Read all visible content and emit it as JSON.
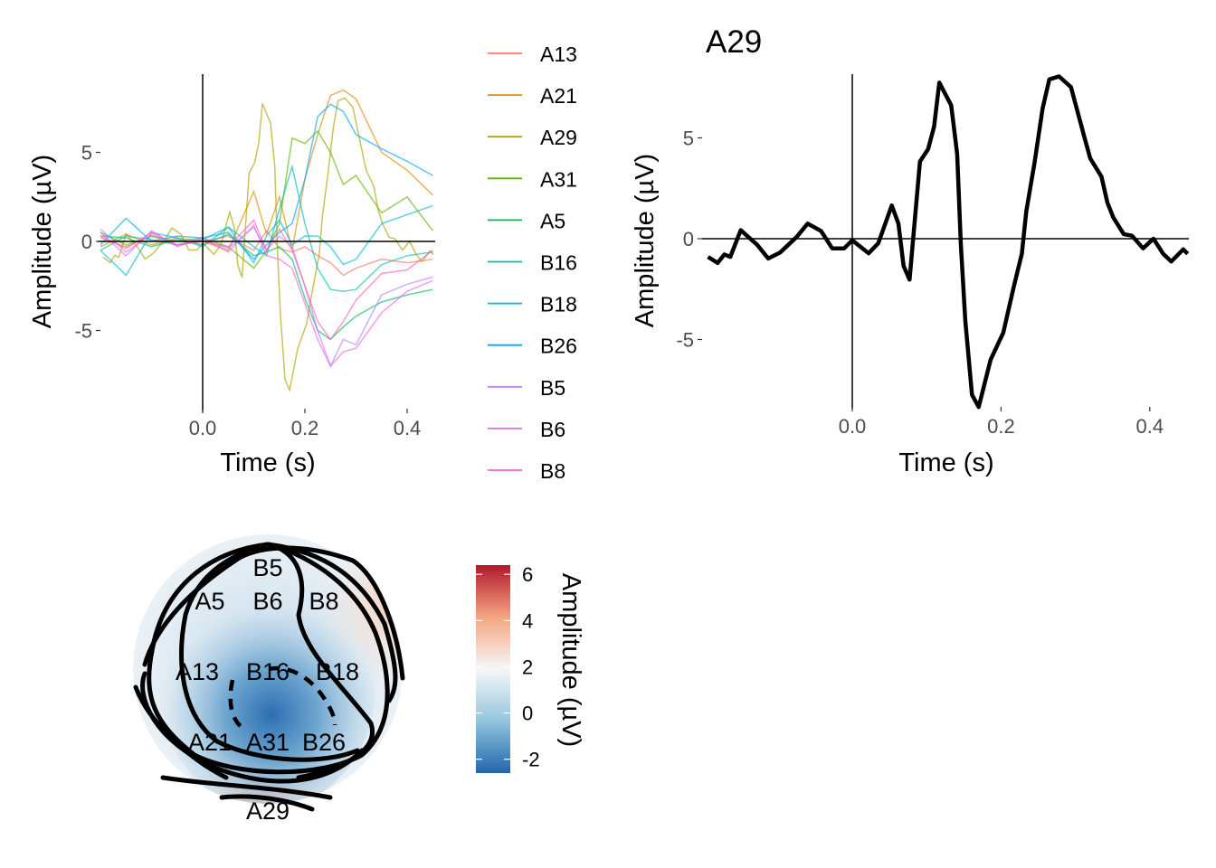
{
  "chart_data": [
    {
      "type": "line",
      "title": "",
      "xlabel": "Time (s)",
      "ylabel": "Amplitude (µV)",
      "xlim": [
        -0.2,
        0.45
      ],
      "ylim": [
        -9.4,
        9.4
      ],
      "xticks": [
        "0.0",
        "0.2",
        "0.4"
      ],
      "xtick_values": [
        0,
        0.2,
        0.4
      ],
      "yticks": [
        "-5",
        "0",
        "5"
      ],
      "ytick_values": [
        -5,
        0,
        5
      ],
      "legend_position": "right",
      "t": [
        -0.2,
        -0.15,
        -0.1,
        -0.05,
        0,
        0.05,
        0.1,
        0.125,
        0.15,
        0.175,
        0.2,
        0.225,
        0.25,
        0.275,
        0.3,
        0.35,
        0.4,
        0.45
      ],
      "series": [
        {
          "name": "A13",
          "color": "#F8766D",
          "values": [
            0.2,
            -0.3,
            0.3,
            -0.2,
            0,
            0.3,
            -0.5,
            0.6,
            -0.4,
            -0.6,
            -0.3,
            -0.8,
            -1.2,
            -1.9,
            -1.5,
            -1.0,
            -1.2,
            -1.0
          ]
        },
        {
          "name": "A21",
          "color": "#DB8E00",
          "values": [
            -0.3,
            0.4,
            -0.2,
            0.2,
            0,
            -0.5,
            2.8,
            0.4,
            2.5,
            -0.5,
            3.5,
            6.0,
            8.2,
            8.5,
            8.0,
            5.0,
            4.0,
            2.6
          ]
        },
        {
          "name": "A29",
          "color": "#AEA200",
          "use": "A29"
        },
        {
          "name": "A31",
          "color": "#64B200",
          "values": [
            0.5,
            -0.2,
            0.3,
            0,
            0.2,
            -0.3,
            -1.5,
            -0.5,
            1.0,
            5.8,
            5.5,
            6.2,
            5.0,
            3.2,
            3.7,
            1.6,
            2.5,
            0.6
          ]
        },
        {
          "name": "A5",
          "color": "#00BD5C",
          "values": [
            0.3,
            0.2,
            -0.3,
            0.1,
            -0.2,
            0.4,
            -0.8,
            -0.6,
            -0.3,
            -1.0,
            -3.2,
            -5.0,
            -5.5,
            -4.8,
            -4.2,
            -3.4,
            -3.0,
            -2.7
          ]
        },
        {
          "name": "B16",
          "color": "#00C1A7",
          "values": [
            -0.5,
            0.3,
            0.1,
            -0.2,
            0.1,
            0.8,
            -0.3,
            -0.8,
            1.8,
            4.2,
            1.0,
            -1.5,
            -2.7,
            -2.8,
            -2.7,
            -1.3,
            -0.8,
            -0.6
          ]
        },
        {
          "name": "B18",
          "color": "#00BADE",
          "values": [
            -0.5,
            -1.9,
            0.5,
            0.2,
            -0.3,
            0.8,
            -1.2,
            0.3,
            1.2,
            -0.2,
            0.3,
            0.3,
            -0.3,
            -1.3,
            -1.0,
            1.0,
            1.5,
            2.0
          ]
        },
        {
          "name": "B26",
          "color": "#00A6FF",
          "values": [
            -0.2,
            1.3,
            0,
            0.3,
            0.2,
            0.5,
            -1.0,
            -0.2,
            0.5,
            1.0,
            3.5,
            7.0,
            7.7,
            7.3,
            6.0,
            5.2,
            4.5,
            3.7
          ]
        },
        {
          "name": "B5",
          "color": "#B385FF",
          "values": [
            0.7,
            -0.6,
            0.4,
            -0.2,
            0.1,
            -0.4,
            0.8,
            -0.5,
            0.3,
            -0.3,
            -2.5,
            -5.0,
            -7.0,
            -5.5,
            -5.8,
            -3.0,
            -2.4,
            -2.0
          ]
        },
        {
          "name": "B6",
          "color": "#EF67EB",
          "values": [
            0.5,
            -0.8,
            0.6,
            -0.3,
            0.2,
            -0.6,
            0.9,
            -0.8,
            -1.0,
            -1.5,
            -3.5,
            -5.5,
            -7.0,
            -6.2,
            -6.0,
            -4.0,
            -2.8,
            -2.2
          ]
        },
        {
          "name": "B8",
          "color": "#FF63B6",
          "values": [
            0.3,
            -0.4,
            0.5,
            -0.2,
            0.0,
            -0.3,
            1.2,
            -0.5,
            0.7,
            -0.5,
            -2.5,
            -4.5,
            -5.5,
            -4.5,
            -3.3,
            -1.8,
            -1.6,
            -0.5
          ]
        }
      ]
    },
    {
      "type": "line",
      "title": "A29",
      "xlabel": "Time (s)",
      "ylabel": "Amplitude (µV)",
      "xlim": [
        -0.2,
        0.45
      ],
      "ylim": [
        -8.4,
        8.1
      ],
      "xticks": [
        "0.0",
        "0.2",
        "0.4"
      ],
      "xtick_values": [
        0,
        0.2,
        0.4
      ],
      "yticks": [
        "-5",
        "0",
        "5"
      ],
      "ytick_values": [
        -5,
        0,
        5
      ],
      "color": "#000000",
      "t": [
        -0.194,
        -0.181,
        -0.172,
        -0.164,
        -0.15,
        -0.128,
        -0.113,
        -0.097,
        -0.075,
        -0.06,
        -0.042,
        -0.027,
        -0.011,
        0,
        0.022,
        0.035,
        0.053,
        0.062,
        0.069,
        0.077,
        0.091,
        0.102,
        0.11,
        0.117,
        0.133,
        0.141,
        0.146,
        0.152,
        0.161,
        0.17,
        0.186,
        0.203,
        0.217,
        0.228,
        0.234,
        0.245,
        0.256,
        0.265,
        0.278,
        0.294,
        0.312,
        0.32,
        0.335,
        0.343,
        0.351,
        0.365,
        0.376,
        0.391,
        0.405,
        0.418,
        0.429,
        0.445,
        0.451
      ],
      "values": [
        -0.9,
        -1.2,
        -0.78,
        -0.9,
        0.42,
        -0.3,
        -0.98,
        -0.68,
        0.08,
        0.75,
        0.38,
        -0.48,
        -0.48,
        -0.08,
        -0.72,
        -0.22,
        1.65,
        0.75,
        -1.35,
        -2.03,
        3.83,
        4.44,
        5.56,
        7.74,
        6.62,
        4.21,
        -0.3,
        -4.06,
        -7.74,
        -8.35,
        -6.0,
        -4.66,
        -2.4,
        -0.75,
        1.35,
        3.76,
        6.47,
        7.9,
        8.05,
        7.52,
        5.04,
        3.98,
        3.08,
        1.8,
        1.05,
        0.23,
        0.15,
        -0.48,
        0,
        -0.75,
        -1.13,
        -0.53,
        -0.75
      ]
    },
    {
      "type": "heatmap",
      "subtype": "topographic-map",
      "electrodes": [
        "B5",
        "A5",
        "B6",
        "B8",
        "A13",
        "B16",
        "B18",
        "A21",
        "A31",
        "B26",
        "A29"
      ],
      "colorbar": {
        "title": "Amplitude (µV)",
        "ticks": [
          "6",
          "4",
          "2",
          "0",
          "-2"
        ],
        "tick_values": [
          6,
          4,
          2,
          0,
          -2
        ],
        "range": [
          -2.6,
          6.4
        ],
        "colors": [
          "#2166AC",
          "#92C5DE",
          "#F7F7F7",
          "#F4A582",
          "#B2182B"
        ]
      }
    }
  ]
}
